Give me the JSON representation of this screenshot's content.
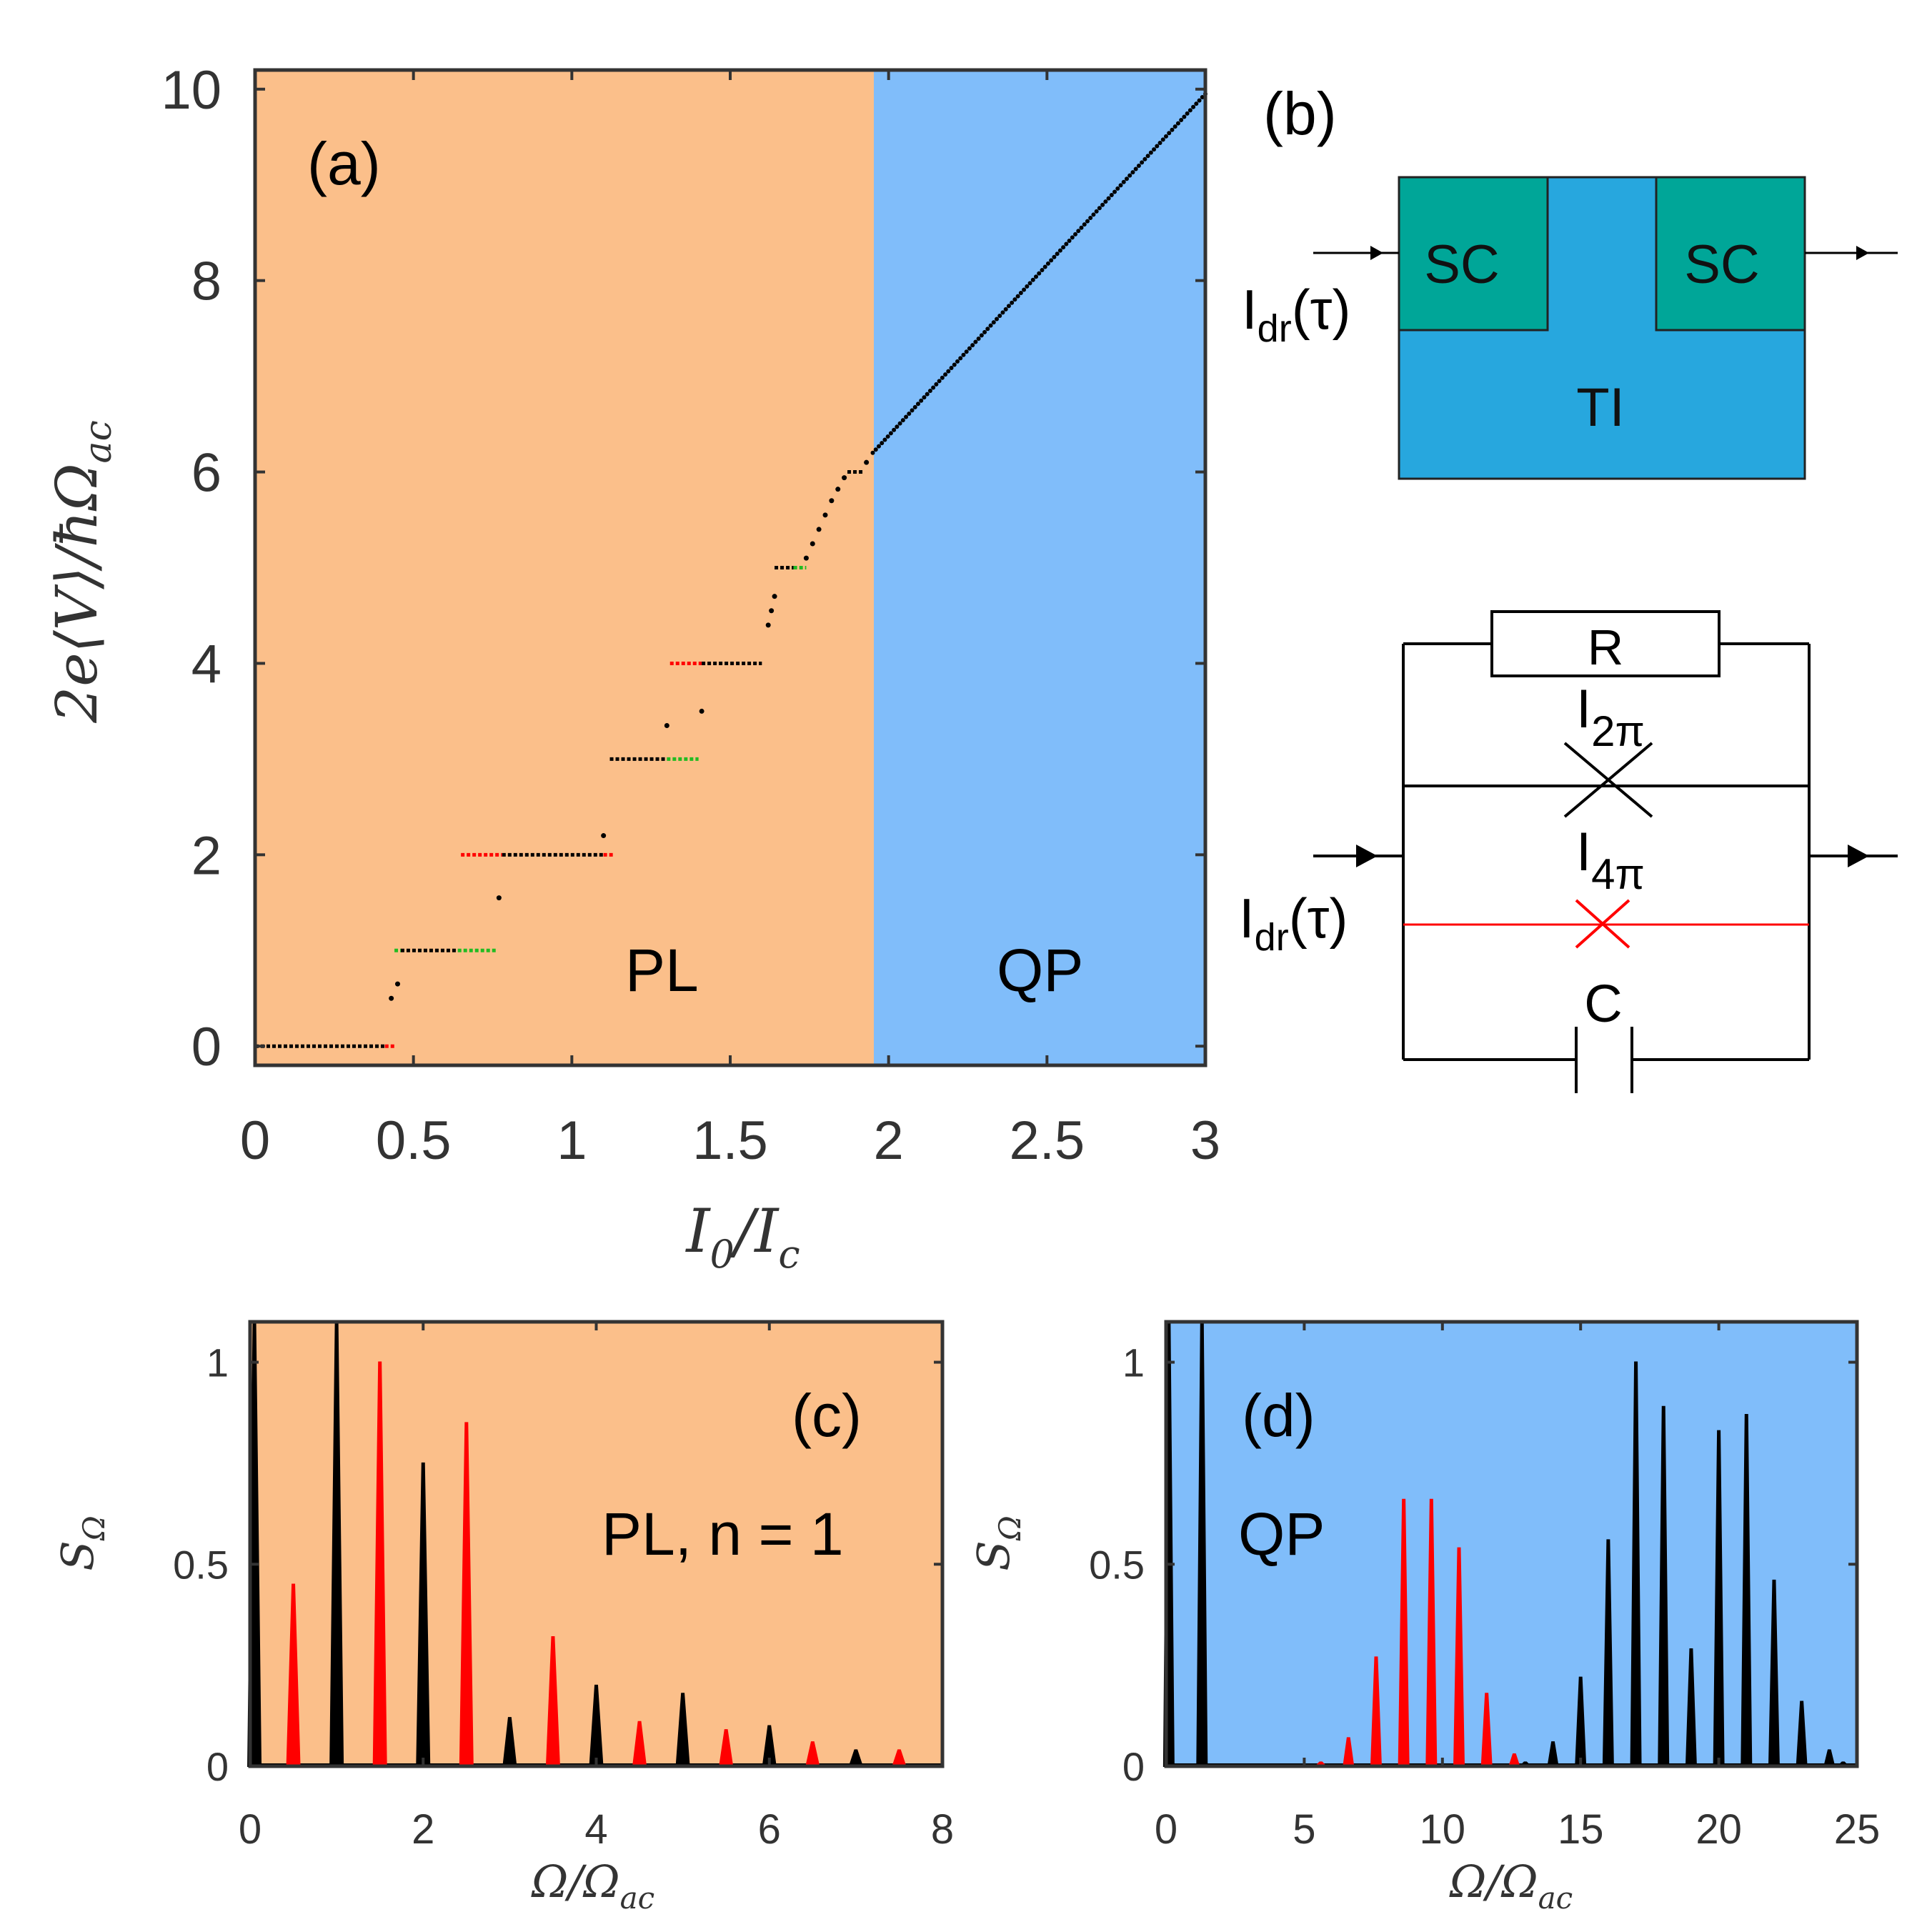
{
  "chart_data": [
    {
      "panel": "(a)",
      "type": "scatter",
      "xlabel": "I_0/I_c",
      "ylabel": "2e⟨V⟩/ħΩ_ac",
      "xlim": [
        0,
        3
      ],
      "ylim": [
        -0.2,
        10.2
      ],
      "xticks": [
        "0",
        "0.5",
        "1",
        "1.5",
        "2",
        "2.5",
        "3"
      ],
      "yticks": [
        "0",
        "2",
        "4",
        "6",
        "8",
        "10"
      ],
      "regions": [
        {
          "label": "PL",
          "x_range": [
            0,
            1.95
          ],
          "color": "#fbbf8a"
        },
        {
          "label": "QP",
          "x_range": [
            1.95,
            3
          ],
          "color": "#80bdfa"
        }
      ],
      "plateaus": [
        {
          "y": 0,
          "segments": [
            {
              "x": [
                0,
                0.41
              ],
              "color": "black"
            },
            {
              "x": [
                0.41,
                0.44
              ],
              "color": "red"
            }
          ]
        },
        {
          "y": 1,
          "segments": [
            {
              "x": [
                0.44,
                0.46
              ],
              "color": "green"
            },
            {
              "x": [
                0.46,
                0.64
              ],
              "color": "black"
            },
            {
              "x": [
                0.64,
                0.76
              ],
              "color": "green"
            }
          ]
        },
        {
          "y": 2,
          "segments": [
            {
              "x": [
                0.65,
                0.78
              ],
              "color": "red"
            },
            {
              "x": [
                0.78,
                1.1
              ],
              "color": "black"
            },
            {
              "x": [
                1.1,
                1.13
              ],
              "color": "red"
            }
          ]
        },
        {
          "y": 3,
          "segments": [
            {
              "x": [
                1.12,
                1.3
              ],
              "color": "black"
            },
            {
              "x": [
                1.3,
                1.4
              ],
              "color": "green"
            }
          ]
        },
        {
          "y": 4,
          "segments": [
            {
              "x": [
                1.31,
                1.41
              ],
              "color": "red"
            },
            {
              "x": [
                1.41,
                1.6
              ],
              "color": "black"
            }
          ]
        },
        {
          "y": 5,
          "segments": [
            {
              "x": [
                1.64,
                1.7
              ],
              "color": "black"
            },
            {
              "x": [
                1.7,
                1.74
              ],
              "color": "green"
            }
          ]
        },
        {
          "y": 6,
          "segments": [
            {
              "x": [
                1.87,
                1.92
              ],
              "color": "black"
            }
          ]
        }
      ],
      "transition_points": [
        {
          "x": 0.43,
          "y": 0.5
        },
        {
          "x": 0.45,
          "y": 0.65
        },
        {
          "x": 0.77,
          "y": 1.55
        },
        {
          "x": 1.1,
          "y": 2.2
        },
        {
          "x": 1.3,
          "y": 3.35
        },
        {
          "x": 1.41,
          "y": 3.5
        },
        {
          "x": 1.62,
          "y": 4.4
        },
        {
          "x": 1.63,
          "y": 4.55
        },
        {
          "x": 1.64,
          "y": 4.7
        },
        {
          "x": 1.74,
          "y": 5.1
        },
        {
          "x": 1.76,
          "y": 5.25
        },
        {
          "x": 1.78,
          "y": 5.4
        },
        {
          "x": 1.8,
          "y": 5.55
        },
        {
          "x": 1.82,
          "y": 5.7
        },
        {
          "x": 1.84,
          "y": 5.82
        },
        {
          "x": 1.86,
          "y": 5.94
        },
        {
          "x": 1.93,
          "y": 6.1
        }
      ],
      "qp_line": {
        "x": [
          1.95,
          3.0
        ],
        "y": [
          6.2,
          9.95
        ]
      },
      "annotations": [
        "(a)",
        "PL",
        "QP"
      ]
    },
    {
      "panel": "(c)",
      "type": "bar",
      "xlabel": "Ω/Ω_ac",
      "ylabel": "S_Ω",
      "xlim": [
        0,
        8
      ],
      "ylim": [
        0,
        1.1
      ],
      "xticks": [
        "0",
        "2",
        "4",
        "6",
        "8"
      ],
      "yticks": [
        "0",
        "0.5",
        "1"
      ],
      "background": "#fbbf8a",
      "annotations": [
        "(c)",
        "PL, n = 1"
      ],
      "series": [
        {
          "color": "black",
          "x": [
            0.05,
            1,
            2,
            3,
            4,
            5,
            6,
            7
          ],
          "values": [
            1.1,
            1.1,
            0.75,
            0.12,
            0.2,
            0.18,
            0.1,
            0.04
          ]
        },
        {
          "color": "red",
          "x": [
            0.5,
            1.5,
            2.5,
            3.5,
            4.5,
            5.5,
            6.5,
            7.5
          ],
          "values": [
            0.45,
            1.0,
            0.85,
            0.32,
            0.11,
            0.09,
            0.06,
            0.04
          ]
        }
      ]
    },
    {
      "panel": "(d)",
      "type": "bar",
      "xlabel": "Ω/Ω_ac",
      "ylabel": "S_Ω",
      "xlim": [
        0,
        25
      ],
      "ylim": [
        0,
        1.1
      ],
      "xticks": [
        "0",
        "5",
        "10",
        "15",
        "20",
        "25"
      ],
      "yticks": [
        "0",
        "0.5",
        "1"
      ],
      "background": "#80bdfa",
      "annotations": [
        "(d)",
        "QP"
      ],
      "series": [
        {
          "color": "black",
          "x": [
            0.1,
            1.3,
            13,
            14,
            15,
            16,
            17,
            18,
            19,
            20,
            21,
            22,
            23,
            24,
            24.5
          ],
          "values": [
            1.1,
            1.1,
            0.01,
            0.06,
            0.22,
            0.56,
            1.0,
            0.89,
            0.29,
            0.83,
            0.87,
            0.46,
            0.16,
            0.04,
            0.01
          ]
        },
        {
          "color": "red",
          "x": [
            5.6,
            6.6,
            7.6,
            8.6,
            9.6,
            10.6,
            11.6,
            12.6
          ],
          "values": [
            0.01,
            0.07,
            0.27,
            0.66,
            0.66,
            0.54,
            0.18,
            0.03
          ]
        }
      ]
    }
  ],
  "diagram_b": {
    "label": "(b)",
    "sc_left": "SC",
    "sc_right": "SC",
    "ti": "TI",
    "drive_label": "I",
    "drive_sub": "dr",
    "drive_arg": "(τ)"
  },
  "circuit": {
    "resistor": "R",
    "junction_2pi_main": "I",
    "junction_2pi_sub": "2π",
    "junction_4pi_main": "I",
    "junction_4pi_sub": "4π",
    "capacitor": "C",
    "drive_label": "I",
    "drive_sub": "dr",
    "drive_arg": "(τ)"
  },
  "colors": {
    "pl_region": "#fbbf8a",
    "qp_region": "#80bdfa",
    "sc_block": "#00a698",
    "ti_block": "#27a7de",
    "axis_frame": "#333333",
    "red": "#ff0000",
    "green": "#22bb22"
  }
}
